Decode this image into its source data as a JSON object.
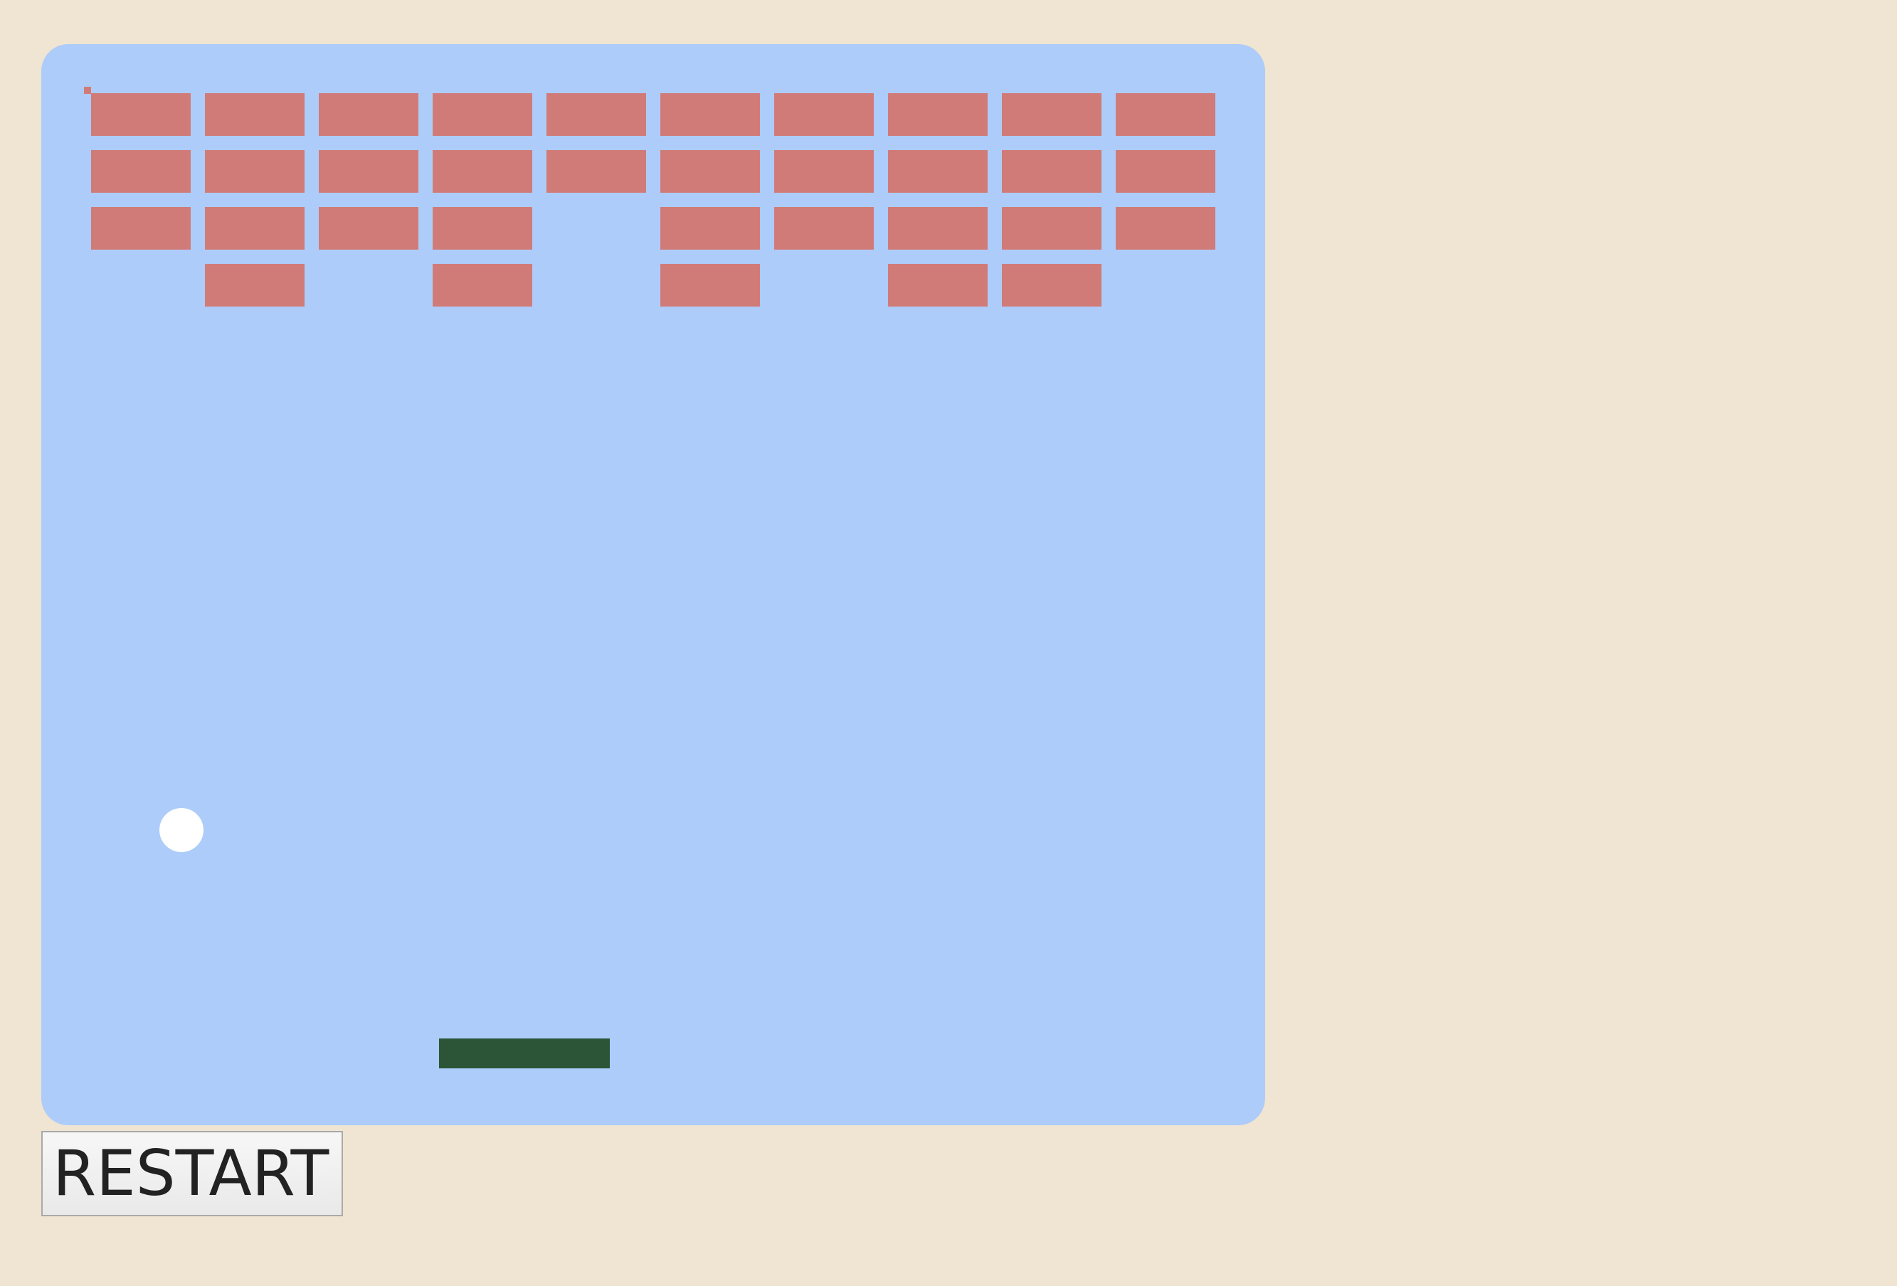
{
  "colors": {
    "page_background": "#f0e5d2",
    "board_background": "#adccf9",
    "brick": "#d17b79",
    "ball": "#ffffff",
    "paddle": "#2b5536"
  },
  "bricks": {
    "columns": 10,
    "rows": 4,
    "alive": [
      [
        1,
        1,
        1,
        1,
        1,
        1,
        1,
        1,
        1,
        1
      ],
      [
        1,
        1,
        1,
        1,
        1,
        1,
        1,
        1,
        1,
        1
      ],
      [
        1,
        1,
        1,
        1,
        0,
        1,
        1,
        1,
        1,
        1
      ],
      [
        0,
        1,
        0,
        1,
        0,
        1,
        0,
        1,
        1,
        0
      ]
    ]
  },
  "controls": {
    "restart_label": "RESTART"
  }
}
